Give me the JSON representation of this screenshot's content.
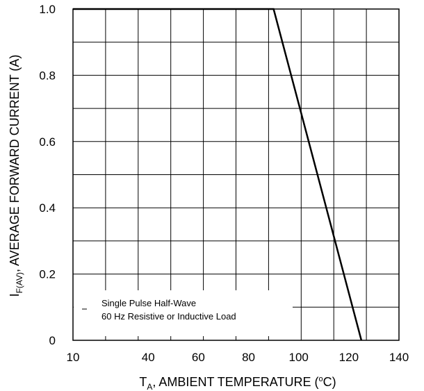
{
  "chart_data": {
    "type": "line",
    "x_label": {
      "main": "T",
      "sub": "A",
      "rest": ", AMBIENT TEMPERATURE (",
      "sup": "o",
      "end": "C)"
    },
    "y_label": {
      "main": "I",
      "sub": "F(AV)",
      "rest": ", AVERAGE FORWARD CURRENT (A)"
    },
    "xlim": [
      10,
      140
    ],
    "ylim": [
      0,
      1.0
    ],
    "x_ticks": [
      {
        "value": 10,
        "label": "10"
      },
      {
        "value": 40,
        "label": "40"
      },
      {
        "value": 60,
        "label": "60"
      },
      {
        "value": 80,
        "label": "80"
      },
      {
        "value": 100,
        "label": "100"
      },
      {
        "value": 120,
        "label": "120"
      },
      {
        "value": 140,
        "label": "140"
      }
    ],
    "y_ticks": [
      {
        "value": 0,
        "label": "0"
      },
      {
        "value": 0.2,
        "label": "0.2"
      },
      {
        "value": 0.4,
        "label": "0.4"
      },
      {
        "value": 0.6,
        "label": "0.6"
      },
      {
        "value": 0.8,
        "label": "0.8"
      },
      {
        "value": 1.0,
        "label": "1.0"
      }
    ],
    "grid": true,
    "annotation": {
      "lines": [
        "Single Pulse Half-Wave",
        "60 Hz Resistive or Inductive Load"
      ],
      "position": "bottom-left"
    },
    "series": [
      {
        "points": [
          {
            "x": 10,
            "y": 1.0
          },
          {
            "x": 90,
            "y": 1.0
          },
          {
            "x": 125,
            "y": 0
          }
        ]
      }
    ]
  },
  "colors": {
    "line": "#000000",
    "grid": "#000000",
    "background": "#ffffff"
  }
}
